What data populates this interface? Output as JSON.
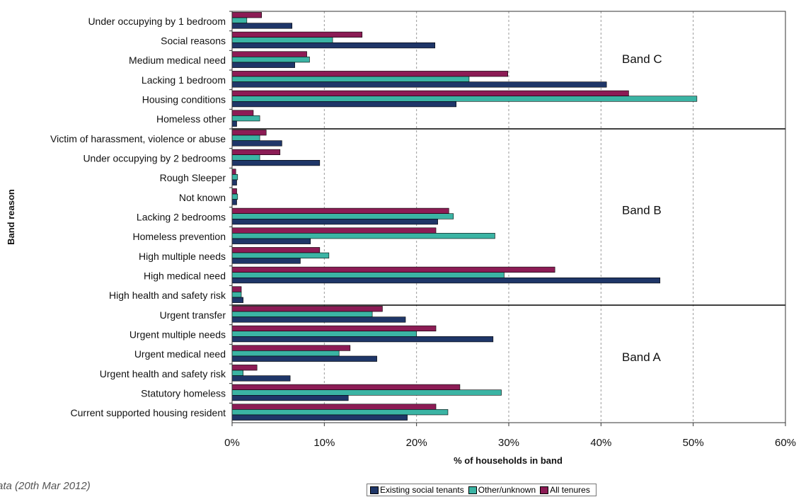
{
  "caption": "ata (20th Mar 2012)",
  "colors": {
    "existing": "#1f3668",
    "other": "#3bb4a4",
    "all": "#8c1c55"
  },
  "chart_data": {
    "type": "bar",
    "orientation": "horizontal",
    "title": "",
    "xlabel": "% of households in band",
    "ylabel": "Band reason",
    "xlim": [
      0,
      60
    ],
    "xticks": [
      "0%",
      "10%",
      "20%",
      "30%",
      "40%",
      "50%",
      "60%"
    ],
    "grid": "vertical dashed",
    "legend": "bottom",
    "categories": [
      "Under occupying by 1 bedroom",
      "Social reasons",
      "Medium medical need",
      "Lacking 1 bedroom",
      "Housing conditions",
      "Homeless other",
      "Victim of harassment, violence or abuse",
      "Under occupying by 2 bedrooms",
      "Rough Sleeper",
      "Not known",
      "Lacking 2 bedrooms",
      "Homeless prevention",
      "High multiple needs",
      "High medical need",
      "High health and safety risk",
      "Urgent transfer",
      "Urgent multiple needs",
      "Urgent medical need",
      "Urgent health and safety risk",
      "Statutory homeless",
      "Current supported housing resident"
    ],
    "series": [
      {
        "name": "All tenures",
        "color": "#8c1c55",
        "values": [
          3.2,
          14.1,
          8.1,
          29.9,
          43.0,
          2.3,
          3.7,
          5.2,
          0.4,
          0.5,
          23.5,
          22.1,
          9.5,
          35.0,
          1.0,
          16.3,
          22.1,
          12.8,
          2.7,
          24.7,
          22.1
        ]
      },
      {
        "name": "Other/unknown",
        "color": "#3bb4a4",
        "values": [
          1.6,
          10.9,
          8.4,
          25.7,
          50.4,
          3.0,
          3.0,
          3.0,
          0.6,
          0.6,
          24.0,
          28.5,
          10.5,
          29.5,
          1.0,
          15.2,
          20.0,
          11.6,
          1.2,
          29.2,
          23.4
        ]
      },
      {
        "name": "Existing social tenants",
        "color": "#1f3668",
        "values": [
          6.5,
          22.0,
          6.8,
          40.6,
          24.3,
          0.5,
          5.4,
          9.5,
          0.5,
          0.5,
          22.3,
          8.5,
          7.4,
          46.4,
          1.2,
          18.8,
          28.3,
          15.7,
          6.3,
          12.6,
          19.0
        ]
      }
    ],
    "bands": [
      {
        "label": "Band C",
        "first": 0,
        "last": 5
      },
      {
        "label": "Band B",
        "first": 6,
        "last": 14
      },
      {
        "label": "Band A",
        "first": 15,
        "last": 20
      }
    ]
  },
  "legend_items": [
    {
      "label": "Existing social tenants",
      "color": "#1f3668"
    },
    {
      "label": "Other/unknown",
      "color": "#3bb4a4"
    },
    {
      "label": "All tenures",
      "color": "#8c1c55"
    }
  ]
}
